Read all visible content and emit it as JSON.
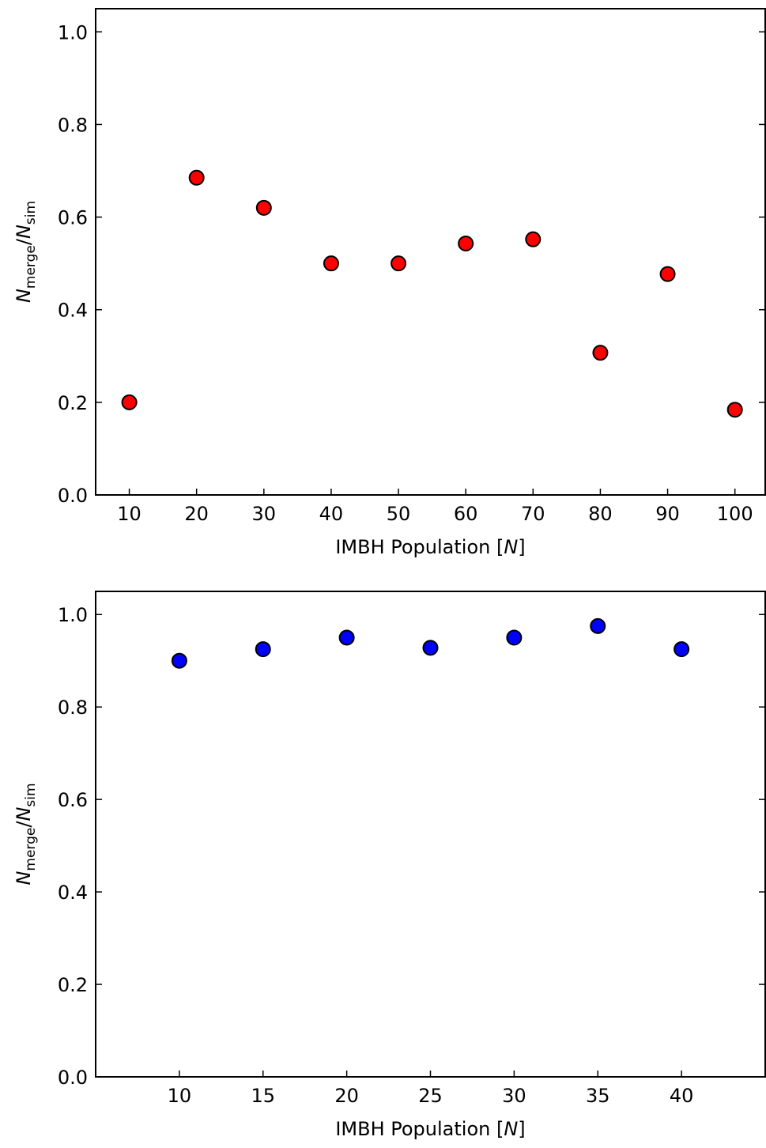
{
  "chart_data": [
    {
      "type": "scatter",
      "x": [
        10,
        20,
        30,
        40,
        50,
        60,
        70,
        80,
        90,
        100
      ],
      "values": [
        0.2,
        0.685,
        0.62,
        0.5,
        0.5,
        0.543,
        0.552,
        0.307,
        0.477,
        0.184
      ],
      "color": "#ff0000",
      "xlim": [
        5,
        104.5
      ],
      "ylim": [
        0,
        1.05
      ],
      "xticks": [
        10,
        20,
        30,
        40,
        50,
        60,
        70,
        80,
        90,
        100
      ],
      "yticks": [
        {
          "value": 0,
          "label": "0.0"
        },
        0.2,
        0.4,
        0.6,
        0.8,
        {
          "value": 1,
          "label": "1.0"
        }
      ],
      "xlabel": [
        "IMBH Population [",
        "N",
        "]"
      ],
      "ylabel": [
        "N",
        "merge",
        "/",
        "N",
        "sim"
      ]
    },
    {
      "type": "scatter",
      "x": [
        10,
        15,
        20,
        25,
        30,
        35,
        40
      ],
      "values": [
        0.9,
        0.925,
        0.95,
        0.928,
        0.95,
        0.975,
        0.925
      ],
      "color": "#0000ff",
      "xlim": [
        5,
        45
      ],
      "ylim": [
        0,
        1.05
      ],
      "xticks": [
        10,
        15,
        20,
        25,
        30,
        35,
        40
      ],
      "yticks": [
        {
          "value": 0,
          "label": "0.0"
        },
        0.2,
        0.4,
        0.6,
        0.8,
        {
          "value": 1,
          "label": "1.0"
        }
      ],
      "xlabel": [
        "IMBH Population [",
        "N",
        "]"
      ],
      "ylabel": [
        "N",
        "merge",
        "/",
        "N",
        "sim"
      ]
    }
  ]
}
